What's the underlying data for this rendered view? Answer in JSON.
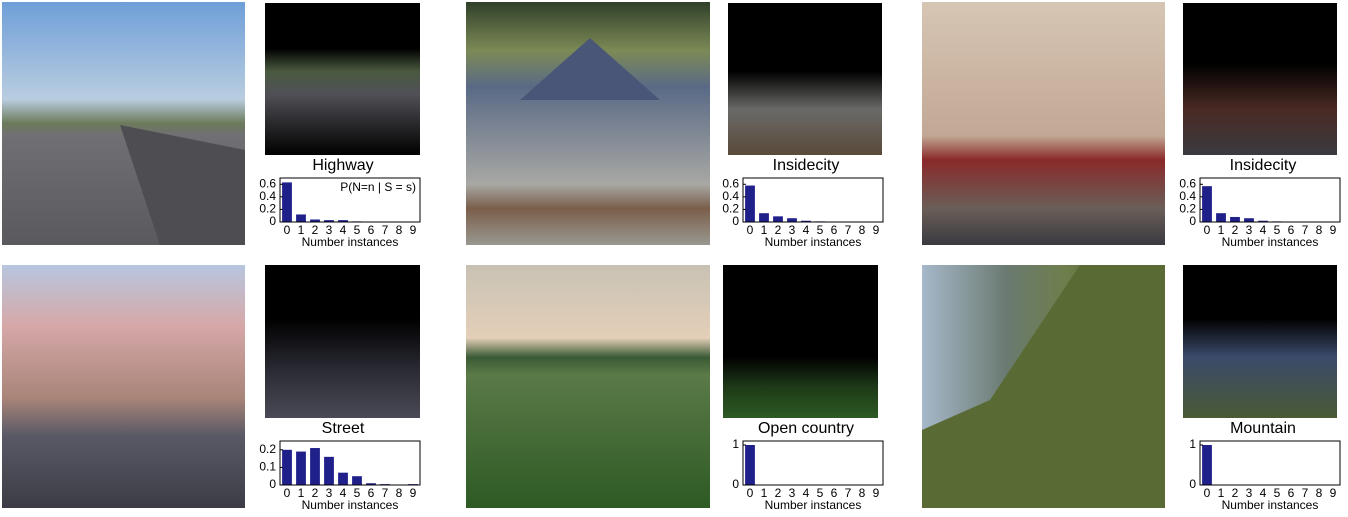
{
  "chart_data": [
    {
      "type": "bar",
      "title": "Highway",
      "annotation": "P(N=n | S = s)",
      "xlabel": "Number instances",
      "categories": [
        "0",
        "1",
        "2",
        "3",
        "4",
        "5",
        "6",
        "7",
        "8",
        "9"
      ],
      "values": [
        0.63,
        0.12,
        0.04,
        0.03,
        0.03,
        0.01,
        0,
        0,
        0,
        0
      ],
      "color": "#20208a",
      "ylim": [
        0,
        0.7
      ],
      "yticks": [
        0,
        0.2,
        0.4,
        0.6
      ]
    },
    {
      "type": "bar",
      "title": "Insidecity",
      "xlabel": "Number instances",
      "categories": [
        "0",
        "1",
        "2",
        "3",
        "4",
        "5",
        "6",
        "7",
        "8",
        "9"
      ],
      "values": [
        0.58,
        0.14,
        0.09,
        0.06,
        0.02,
        0.01,
        0.005,
        0,
        0,
        0
      ],
      "color": "#20208a",
      "ylim": [
        0,
        0.7
      ],
      "yticks": [
        0,
        0.2,
        0.4,
        0.6
      ]
    },
    {
      "type": "bar",
      "title": "Insidecity",
      "xlabel": "Number instances",
      "categories": [
        "0",
        "1",
        "2",
        "3",
        "4",
        "5",
        "6",
        "7",
        "8",
        "9"
      ],
      "values": [
        0.57,
        0.14,
        0.08,
        0.06,
        0.02,
        0.01,
        0,
        0,
        0,
        0
      ],
      "color": "#20208a",
      "ylim": [
        0,
        0.7
      ],
      "yticks": [
        0,
        0.2,
        0.4,
        0.6
      ]
    },
    {
      "type": "bar",
      "title": "Street",
      "xlabel": "Number instances",
      "categories": [
        "0",
        "1",
        "2",
        "3",
        "4",
        "5",
        "6",
        "7",
        "8",
        "9"
      ],
      "values": [
        0.2,
        0.19,
        0.21,
        0.16,
        0.07,
        0.05,
        0.01,
        0.005,
        0,
        0.005
      ],
      "color": "#20208a",
      "ylim": [
        0,
        0.25
      ],
      "yticks": [
        0,
        0.1,
        0.2
      ]
    },
    {
      "type": "bar",
      "title": "Open country",
      "xlabel": "Number instances",
      "categories": [
        "0",
        "1",
        "2",
        "3",
        "4",
        "5",
        "6",
        "7",
        "8",
        "9"
      ],
      "values": [
        1,
        0,
        0,
        0,
        0,
        0,
        0,
        0,
        0,
        0
      ],
      "color": "#20208a",
      "ylim": [
        0,
        1.1
      ],
      "yticks": [
        0,
        1
      ]
    },
    {
      "type": "bar",
      "title": "Mountain",
      "xlabel": "Number instances",
      "categories": [
        "0",
        "1",
        "2",
        "3",
        "4",
        "5",
        "6",
        "7",
        "8",
        "9"
      ],
      "values": [
        1,
        0,
        0,
        0,
        0,
        0,
        0,
        0,
        0,
        0
      ],
      "color": "#20208a",
      "ylim": [
        0,
        1.1
      ],
      "yticks": [
        0,
        1
      ]
    }
  ]
}
